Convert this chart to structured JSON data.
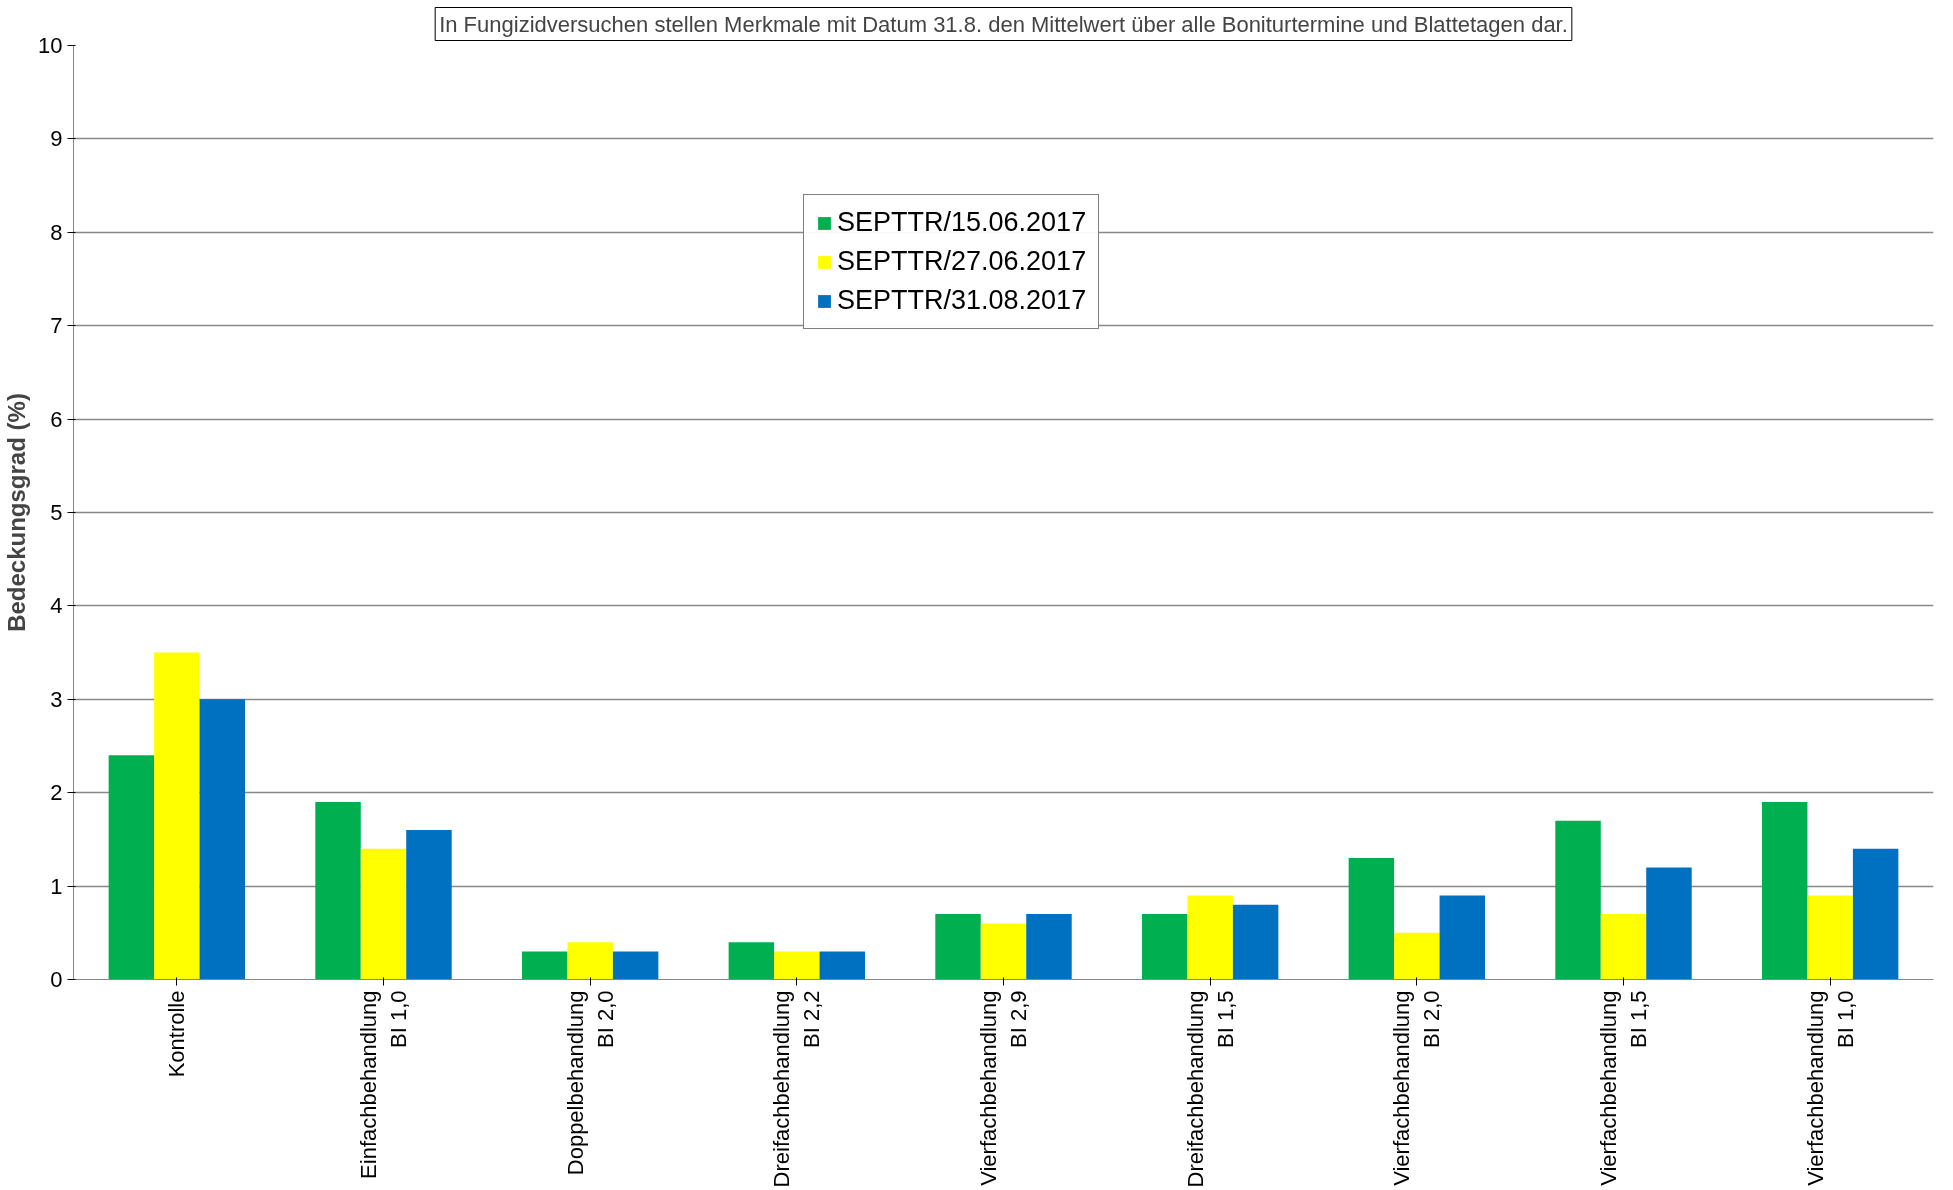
{
  "chart_data": {
    "type": "bar",
    "annotations": [
      "In Fungizidversuchen stellen Merkmale mit Datum 31.8. den Mittelwert über alle Boniturtermine und Blattetagen dar."
    ],
    "ylabel": "Bedeckungsgrad (%)",
    "categories": [
      "Kontrolle",
      "Einfachbehandlung\nBI 1,0",
      "Doppelbehandlung\nBI 2,0",
      "Dreifachbehandlung\nBI 2,2",
      "Vierfachbehandlung\nBI 2,9",
      "Dreifachbehandlung\nBI 1,5",
      "Vierfachbehandlung\nBI 2,0",
      "Vierfachbehandlung\nBI 1,5",
      "Vierfachbehandlung\nBI 1,0"
    ],
    "series": [
      {
        "name": "SEPTTR/15.06.2017",
        "color": "#00b050",
        "values": [
          2.4,
          1.9,
          0.3,
          0.4,
          0.7,
          0.7,
          1.3,
          1.7,
          1.9
        ]
      },
      {
        "name": "SEPTTR/27.06.2017",
        "color": "#ffff00",
        "values": [
          3.5,
          1.4,
          0.4,
          0.3,
          0.6,
          0.9,
          0.5,
          0.7,
          0.9
        ]
      },
      {
        "name": "SEPTTR/31.08.2017",
        "color": "#0070c0",
        "values": [
          3.0,
          1.6,
          0.3,
          0.3,
          0.7,
          0.8,
          0.9,
          1.2,
          1.4
        ]
      }
    ],
    "ylim": [
      0,
      10
    ],
    "yticks": [
      0,
      1,
      2,
      3,
      4,
      5,
      6,
      7,
      8,
      9,
      10
    ],
    "grid": "y",
    "legend": "top"
  }
}
